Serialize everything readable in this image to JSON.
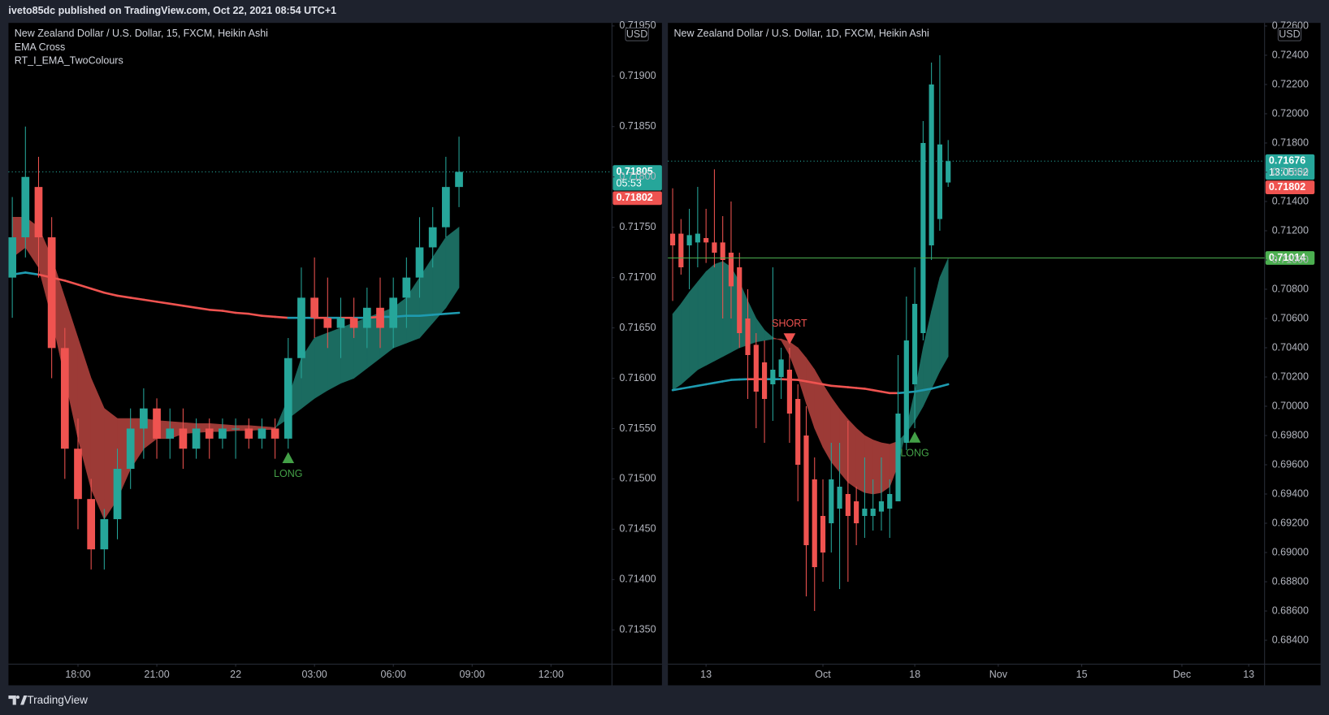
{
  "header": {
    "text": "iveto85dc published on TradingView.com, Oct 22, 2021 08:54 UTC+1"
  },
  "footer": {
    "brand": "TradingView"
  },
  "chart_data": [
    {
      "type": "candlestick",
      "title": "New Zealand Dollar / U.S. Dollar, 15, FXCM, Heikin Ashi",
      "indicators": [
        "EMA Cross",
        "RT_I_EMA_TwoColours"
      ],
      "currency": "USD",
      "up_color": "#26a69a",
      "down_color": "#ef5350",
      "ribbon_up_color": "#1b6b60",
      "ribbon_down_color": "#9c3a36",
      "ema_up_color": "#1e9bb0",
      "ema_down_color": "#ef5350",
      "x": [
        15.5,
        16,
        16.5,
        17,
        17.5,
        18,
        18.5,
        19,
        19.5,
        20,
        20.5,
        21,
        21.5,
        22,
        22.5,
        23,
        23.5,
        24,
        24.5,
        25,
        25.5,
        26,
        26.5,
        27,
        27.5,
        28,
        28.5,
        29,
        29.5,
        30,
        30.5,
        31,
        31.5,
        32,
        32.5
      ],
      "open": [
        0.717,
        0.7174,
        0.7179,
        0.7174,
        0.7163,
        0.7153,
        0.7148,
        0.7143,
        0.7146,
        0.7151,
        0.7155,
        0.7157,
        0.7154,
        0.7155,
        0.7153,
        0.7155,
        0.7154,
        0.7155,
        0.7155,
        0.7154,
        0.7155,
        0.7154,
        0.7162,
        0.7168,
        0.7166,
        0.7165,
        0.7166,
        0.7165,
        0.7167,
        0.7165,
        0.7168,
        0.717,
        0.7173,
        0.7175,
        0.7179
      ],
      "high": [
        0.7178,
        0.7185,
        0.7182,
        0.7176,
        0.7165,
        0.7156,
        0.715,
        0.7147,
        0.7153,
        0.7157,
        0.7159,
        0.7158,
        0.7157,
        0.7157,
        0.7156,
        0.7156,
        0.7156,
        0.7156,
        0.7156,
        0.7156,
        0.7156,
        0.7164,
        0.7171,
        0.7172,
        0.717,
        0.7168,
        0.7168,
        0.7169,
        0.717,
        0.717,
        0.7172,
        0.7176,
        0.7177,
        0.7182,
        0.7184
      ],
      "low": [
        0.7166,
        0.7172,
        0.717,
        0.716,
        0.715,
        0.7145,
        0.7141,
        0.7141,
        0.7144,
        0.7149,
        0.7152,
        0.7152,
        0.7152,
        0.7151,
        0.7152,
        0.7152,
        0.7153,
        0.7152,
        0.7153,
        0.7153,
        0.7152,
        0.7153,
        0.716,
        0.7164,
        0.7163,
        0.7162,
        0.7164,
        0.7163,
        0.7163,
        0.7163,
        0.7165,
        0.7168,
        0.7171,
        0.7174,
        0.7177
      ],
      "close": [
        0.7174,
        0.718,
        0.7174,
        0.7163,
        0.7153,
        0.7148,
        0.7143,
        0.7146,
        0.7151,
        0.7155,
        0.7157,
        0.7154,
        0.7155,
        0.7153,
        0.7155,
        0.7154,
        0.7155,
        0.7155,
        0.7154,
        0.7155,
        0.7154,
        0.7162,
        0.7168,
        0.7166,
        0.7165,
        0.7166,
        0.7165,
        0.7167,
        0.7165,
        0.7168,
        0.717,
        0.7173,
        0.7175,
        0.7179,
        0.71805
      ],
      "ema_fast": [
        0.7172,
        0.7173,
        0.7171,
        0.7166,
        0.716,
        0.7154,
        0.7149,
        0.7146,
        0.7148,
        0.7151,
        0.7153,
        0.7154,
        0.7154,
        0.71545,
        0.71546,
        0.71547,
        0.71547,
        0.71548,
        0.71548,
        0.71549,
        0.71549,
        0.7158,
        0.7162,
        0.7164,
        0.71645,
        0.7165,
        0.71655,
        0.7166,
        0.71665,
        0.7167,
        0.7168,
        0.717,
        0.7172,
        0.7174,
        0.7175
      ],
      "ema_slow": [
        0.7176,
        0.7176,
        0.7175,
        0.7172,
        0.7168,
        0.7164,
        0.716,
        0.7157,
        0.7156,
        0.7156,
        0.7156,
        0.71558,
        0.71557,
        0.71556,
        0.71555,
        0.71555,
        0.71554,
        0.71553,
        0.71553,
        0.71552,
        0.71551,
        0.7156,
        0.7157,
        0.7158,
        0.71588,
        0.71595,
        0.716,
        0.7161,
        0.7162,
        0.7163,
        0.71635,
        0.7164,
        0.71655,
        0.7167,
        0.7169
      ],
      "ema_long": [
        0.71703,
        0.71705,
        0.71703,
        0.717,
        0.71697,
        0.71693,
        0.71689,
        0.71685,
        0.71682,
        0.7168,
        0.71678,
        0.71676,
        0.71674,
        0.71672,
        0.7167,
        0.71668,
        0.71667,
        0.71665,
        0.71664,
        0.71662,
        0.71661,
        0.7166,
        0.7166,
        0.7166,
        0.7166,
        0.7166,
        0.7166,
        0.7166,
        0.71661,
        0.71661,
        0.71662,
        0.71662,
        0.71663,
        0.71664,
        0.71665
      ],
      "signals": [
        {
          "x": 26,
          "label": "LONG",
          "direction": "up",
          "color": "#43a047"
        }
      ],
      "last_price": {
        "value": 0.71805,
        "label": "0.71805",
        "countdown": "05:53"
      },
      "prev_close": {
        "value": 0.71802,
        "label": "0.71802"
      },
      "levels": [],
      "xlim": [
        15.355,
        38.32
      ],
      "xticks": [
        {
          "value": 18,
          "label": "18:00"
        },
        {
          "value": 21,
          "label": "21:00"
        },
        {
          "value": 24,
          "label": "22"
        },
        {
          "value": 27,
          "label": "03:00"
        },
        {
          "value": 30,
          "label": "06:00"
        },
        {
          "value": 33,
          "label": "09:00"
        },
        {
          "value": 36,
          "label": "12:00"
        }
      ],
      "ylim": [
        0.71316,
        0.71953
      ],
      "yticks": [
        {
          "value": 0.7135,
          "label": "0.71350"
        },
        {
          "value": 0.714,
          "label": "0.71400"
        },
        {
          "value": 0.7145,
          "label": "0.71450"
        },
        {
          "value": 0.715,
          "label": "0.71500"
        },
        {
          "value": 0.7155,
          "label": "0.71550"
        },
        {
          "value": 0.716,
          "label": "0.71600"
        },
        {
          "value": 0.7165,
          "label": "0.71650"
        },
        {
          "value": 0.717,
          "label": "0.71700"
        },
        {
          "value": 0.7175,
          "label": "0.71750"
        },
        {
          "value": 0.718,
          "label": "0.71800"
        },
        {
          "value": 0.7185,
          "label": "0.71850"
        },
        {
          "value": 0.719,
          "label": "0.71900"
        },
        {
          "value": 0.7195,
          "label": "0.71950"
        }
      ]
    },
    {
      "type": "candlestick",
      "title": "New Zealand Dollar / U.S. Dollar, 1D, FXCM, Heikin Ashi",
      "indicators": [],
      "currency": "USD",
      "up_color": "#26a69a",
      "down_color": "#ef5350",
      "ribbon_up_color": "#1b6b60",
      "ribbon_down_color": "#9c3a36",
      "ema_up_color": "#1e9bb0",
      "ema_down_color": "#ef5350",
      "x": [
        -4,
        -3,
        -2,
        -1,
        0,
        1,
        2,
        3,
        4,
        5,
        6,
        7,
        8,
        9,
        10,
        11,
        12,
        13,
        14,
        15,
        16,
        17,
        18,
        19,
        20,
        21,
        22,
        23,
        24,
        25,
        26,
        27,
        28,
        29
      ],
      "open": [
        0.7118,
        0.7118,
        0.711,
        0.7112,
        0.7115,
        0.7112,
        0.7112,
        0.7105,
        0.7095,
        0.706,
        0.7042,
        0.703,
        0.7015,
        0.702,
        0.7025,
        0.7005,
        0.698,
        0.695,
        0.6925,
        0.692,
        0.693,
        0.694,
        0.6935,
        0.6925,
        0.6925,
        0.6928,
        0.693,
        0.6935,
        0.6975,
        0.7015,
        0.705,
        0.711,
        0.7128,
        0.7153
      ],
      "high": [
        0.7149,
        0.7128,
        0.7135,
        0.715,
        0.7135,
        0.7162,
        0.713,
        0.714,
        0.7105,
        0.708,
        0.705,
        0.7045,
        0.7095,
        0.704,
        0.704,
        0.7015,
        0.7,
        0.6965,
        0.695,
        0.6975,
        0.6975,
        0.699,
        0.6945,
        0.6965,
        0.695,
        0.6965,
        0.695,
        0.7035,
        0.7075,
        0.7095,
        0.7195,
        0.7235,
        0.724,
        0.7182
      ],
      "low": [
        0.7072,
        0.709,
        0.708,
        0.7095,
        0.7098,
        0.7095,
        0.706,
        0.706,
        0.704,
        0.7005,
        0.6985,
        0.6975,
        0.699,
        0.7005,
        0.6975,
        0.6935,
        0.687,
        0.686,
        0.688,
        0.69,
        0.6875,
        0.688,
        0.6905,
        0.691,
        0.6915,
        0.6915,
        0.691,
        0.6935,
        0.697,
        0.6985,
        0.7045,
        0.71,
        0.712,
        0.715
      ],
      "close": [
        0.711,
        0.7095,
        0.7117,
        0.7118,
        0.7112,
        0.7105,
        0.71,
        0.7082,
        0.705,
        0.7035,
        0.701,
        0.7005,
        0.7025,
        0.7032,
        0.6995,
        0.696,
        0.6905,
        0.689,
        0.69,
        0.695,
        0.6945,
        0.6925,
        0.692,
        0.693,
        0.693,
        0.6935,
        0.694,
        0.6995,
        0.7045,
        0.707,
        0.718,
        0.722,
        0.7179,
        0.71676
      ],
      "ema_fast": [
        0.7063,
        0.707,
        0.7078,
        0.7085,
        0.7092,
        0.7097,
        0.7099,
        0.7095,
        0.7085,
        0.7072,
        0.706,
        0.7052,
        0.7047,
        0.7045,
        0.7035,
        0.702,
        0.7002,
        0.6985,
        0.6972,
        0.6962,
        0.6955,
        0.6948,
        0.6944,
        0.6941,
        0.694,
        0.6941,
        0.6945,
        0.696,
        0.6985,
        0.701,
        0.704,
        0.7065,
        0.7088,
        0.7101
      ],
      "ema_slow": [
        0.7011,
        0.7015,
        0.702,
        0.7025,
        0.7028,
        0.7031,
        0.7034,
        0.7037,
        0.704,
        0.7042,
        0.7044,
        0.7045,
        0.7046,
        0.7046,
        0.7044,
        0.704,
        0.7033,
        0.7025,
        0.7015,
        0.7006,
        0.6998,
        0.6991,
        0.6985,
        0.698,
        0.6977,
        0.6975,
        0.6974,
        0.6976,
        0.6982,
        0.699,
        0.7,
        0.7012,
        0.7024,
        0.7034
      ],
      "ema_long": [
        0.7011,
        0.7012,
        0.7013,
        0.7014,
        0.7015,
        0.7016,
        0.7017,
        0.7018,
        0.70183,
        0.70185,
        0.70185,
        0.70185,
        0.70185,
        0.70185,
        0.70182,
        0.7018,
        0.7017,
        0.7016,
        0.7015,
        0.7014,
        0.70135,
        0.7013,
        0.70125,
        0.7012,
        0.7011,
        0.701,
        0.7009,
        0.7009,
        0.70095,
        0.701,
        0.7011,
        0.7012,
        0.70135,
        0.7015
      ],
      "signals": [
        {
          "x": 10,
          "label": "SHORT",
          "direction": "down",
          "color": "#ef5350"
        },
        {
          "x": 25,
          "label": "LONG",
          "direction": "up",
          "color": "#43a047"
        }
      ],
      "last_price": {
        "value": 0.71676,
        "label": "0.71676",
        "countdown": "13:05:52"
      },
      "prev_close": {
        "value": 0.71802,
        "label": "0.71802"
      },
      "levels": [
        {
          "value": 0.71014,
          "label": "0.71014",
          "color": "#4caf50"
        }
      ],
      "xlim": [
        -4.57,
        66.9
      ],
      "xticks": [
        {
          "value": 0,
          "label": "13"
        },
        {
          "value": 14,
          "label": "Oct"
        },
        {
          "value": 25,
          "label": "18"
        },
        {
          "value": 35,
          "label": "Nov"
        },
        {
          "value": 45,
          "label": "15"
        },
        {
          "value": 57,
          "label": "Dec"
        },
        {
          "value": 65,
          "label": "13"
        }
      ],
      "ylim": [
        0.68237,
        0.72621
      ],
      "yticks": [
        {
          "value": 0.684,
          "label": "0.68400"
        },
        {
          "value": 0.686,
          "label": "0.68600"
        },
        {
          "value": 0.688,
          "label": "0.68800"
        },
        {
          "value": 0.69,
          "label": "0.69000"
        },
        {
          "value": 0.692,
          "label": "0.69200"
        },
        {
          "value": 0.694,
          "label": "0.69400"
        },
        {
          "value": 0.696,
          "label": "0.69600"
        },
        {
          "value": 0.698,
          "label": "0.69800"
        },
        {
          "value": 0.7,
          "label": "0.70000"
        },
        {
          "value": 0.702,
          "label": "0.70200"
        },
        {
          "value": 0.704,
          "label": "0.70400"
        },
        {
          "value": 0.706,
          "label": "0.70600"
        },
        {
          "value": 0.708,
          "label": "0.70800"
        },
        {
          "value": 0.71,
          "label": "0.71000"
        },
        {
          "value": 0.712,
          "label": "0.71200"
        },
        {
          "value": 0.714,
          "label": "0.71400"
        },
        {
          "value": 0.716,
          "label": "0.71600"
        },
        {
          "value": 0.718,
          "label": "0.71800"
        },
        {
          "value": 0.72,
          "label": "0.72000"
        },
        {
          "value": 0.722,
          "label": "0.72200"
        },
        {
          "value": 0.724,
          "label": "0.72400"
        },
        {
          "value": 0.726,
          "label": "0.72600"
        }
      ]
    }
  ]
}
